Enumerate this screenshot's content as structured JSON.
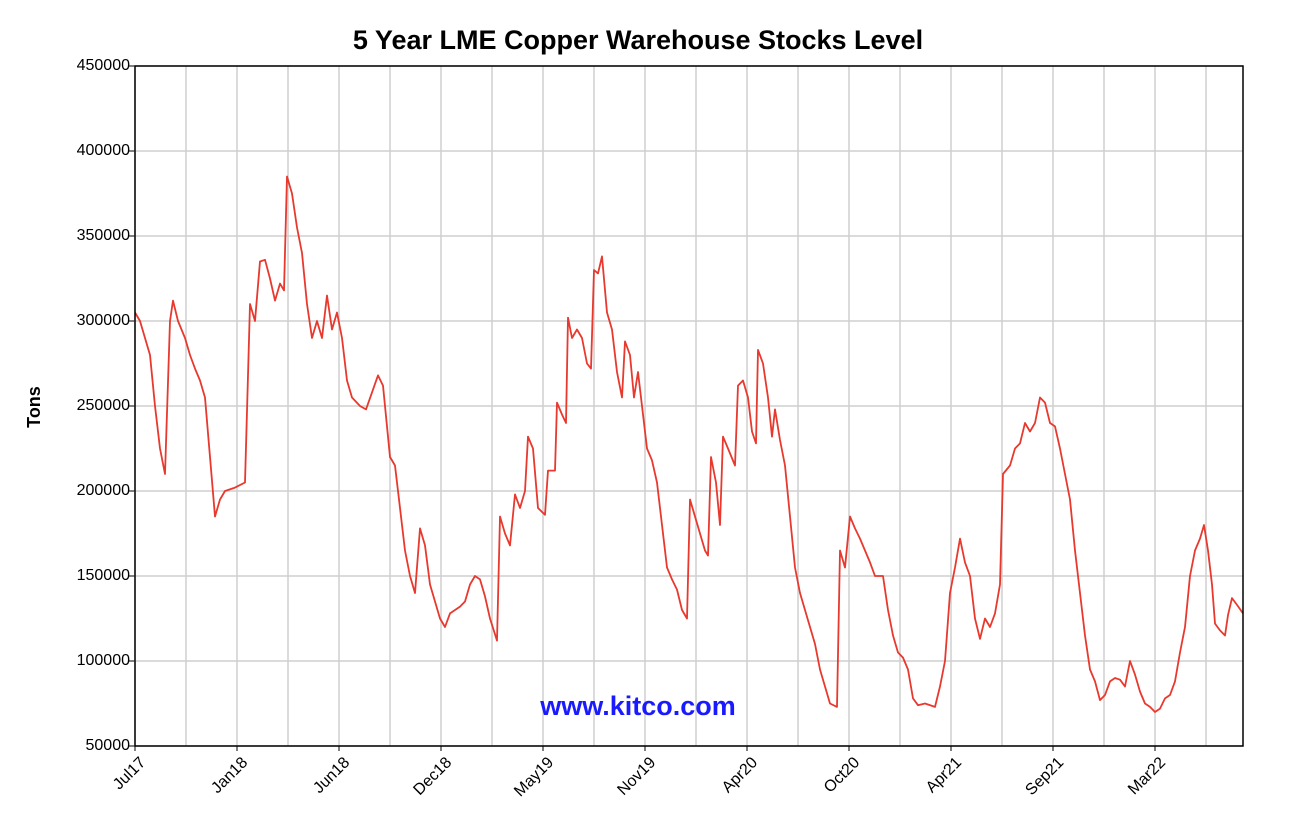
{
  "chart_data": {
    "type": "line",
    "title": "5 Year LME Copper Warehouse Stocks Level",
    "y_label": "Tons",
    "annotation": "www.kitco.com",
    "grid": true,
    "xlim": [
      0,
      1108
    ],
    "xticks": [
      {
        "value": 0,
        "label": "Jul17"
      },
      {
        "value": 102,
        "label": "Jan18"
      },
      {
        "value": 204,
        "label": "Jun18"
      },
      {
        "value": 306,
        "label": "Dec18"
      },
      {
        "value": 408,
        "label": "May19"
      },
      {
        "value": 510,
        "label": "Nov19"
      },
      {
        "value": 612,
        "label": "Apr20"
      },
      {
        "value": 714,
        "label": "Oct20"
      },
      {
        "value": 816,
        "label": "Apr21"
      },
      {
        "value": 918,
        "label": "Sep21"
      },
      {
        "value": 1020,
        "label": "Mar22"
      }
    ],
    "xminor": [
      51,
      153,
      255,
      357,
      459,
      561,
      663,
      765,
      867,
      969,
      1071
    ],
    "ylim": [
      50000,
      450000
    ],
    "yticks": [
      50000,
      100000,
      150000,
      200000,
      250000,
      300000,
      350000,
      400000,
      450000
    ],
    "series": [
      {
        "name": "Tons",
        "color": "#e8392e",
        "x": [
          0,
          5,
          15,
          20,
          25,
          30,
          35,
          38,
          43,
          50,
          55,
          60,
          65,
          70,
          75,
          80,
          85,
          90,
          100,
          110,
          115,
          120,
          125,
          130,
          135,
          140,
          145,
          149,
          152,
          157,
          162,
          167,
          172,
          177,
          182,
          187,
          192,
          197,
          202,
          207,
          212,
          217,
          225,
          231,
          237,
          243,
          248,
          255,
          260,
          265,
          270,
          275,
          280,
          285,
          290,
          295,
          300,
          305,
          310,
          315,
          325,
          330,
          335,
          340,
          345,
          350,
          355,
          362,
          365,
          370,
          375,
          380,
          385,
          390,
          393,
          398,
          403,
          410,
          413,
          420,
          422,
          427,
          431,
          433,
          437,
          442,
          447,
          452,
          456,
          459,
          463,
          467,
          472,
          477,
          482,
          487,
          490,
          495,
          499,
          503,
          507,
          512,
          517,
          522,
          527,
          532,
          537,
          542,
          547,
          552,
          555,
          560,
          565,
          570,
          573,
          576,
          581,
          585,
          588,
          593,
          600,
          603,
          608,
          613,
          617,
          621,
          623,
          628,
          633,
          637,
          640,
          645,
          650,
          655,
          660,
          665,
          670,
          675,
          680,
          685,
          690,
          695,
          702,
          705,
          710,
          715,
          720,
          725,
          730,
          735,
          740,
          748,
          753,
          758,
          763,
          768,
          773,
          778,
          783,
          790,
          800,
          805,
          810,
          815,
          820,
          825,
          830,
          835,
          840,
          845,
          850,
          855,
          860,
          865,
          868,
          875,
          880,
          885,
          890,
          895,
          900,
          905,
          910,
          915,
          920,
          925,
          930,
          935,
          940,
          945,
          950,
          955,
          960,
          965,
          970,
          975,
          980,
          985,
          990,
          995,
          1000,
          1005,
          1010,
          1015,
          1020,
          1025,
          1030,
          1035,
          1040,
          1045,
          1050,
          1055,
          1060,
          1065,
          1069,
          1073,
          1077,
          1080,
          1085,
          1090,
          1093,
          1097,
          1102,
          1108
        ],
        "values": [
          305000,
          300000,
          280000,
          250000,
          225000,
          210000,
          300000,
          312000,
          300000,
          290000,
          280000,
          272000,
          265000,
          255000,
          220000,
          185000,
          195000,
          200000,
          202000,
          205000,
          310000,
          300000,
          335000,
          336000,
          325000,
          312000,
          322000,
          318000,
          385000,
          375000,
          355000,
          340000,
          310000,
          290000,
          300000,
          290000,
          315000,
          295000,
          305000,
          290000,
          265000,
          255000,
          250000,
          248000,
          258000,
          268000,
          262000,
          220000,
          215000,
          190000,
          165000,
          150000,
          140000,
          178000,
          168000,
          145000,
          135000,
          125000,
          120000,
          128000,
          132000,
          135000,
          145000,
          150000,
          148000,
          138000,
          125000,
          112000,
          185000,
          175000,
          168000,
          198000,
          190000,
          200000,
          232000,
          225000,
          190000,
          186000,
          212000,
          212000,
          252000,
          245000,
          240000,
          302000,
          290000,
          295000,
          290000,
          275000,
          272000,
          330000,
          328000,
          338000,
          305000,
          295000,
          270000,
          255000,
          288000,
          280000,
          255000,
          270000,
          250000,
          225000,
          218000,
          205000,
          180000,
          155000,
          148000,
          142000,
          130000,
          125000,
          195000,
          185000,
          175000,
          165000,
          162000,
          220000,
          205000,
          180000,
          232000,
          225000,
          215000,
          262000,
          265000,
          255000,
          235000,
          228000,
          283000,
          275000,
          255000,
          232000,
          248000,
          230000,
          215000,
          185000,
          155000,
          140000,
          130000,
          120000,
          110000,
          95000,
          85000,
          75000,
          73000,
          165000,
          155000,
          185000,
          178000,
          172000,
          165000,
          158000,
          150000,
          150000,
          130000,
          115000,
          105000,
          102000,
          95000,
          78000,
          74000,
          75000,
          73000,
          85000,
          100000,
          140000,
          155000,
          172000,
          158000,
          150000,
          125000,
          113000,
          125000,
          120000,
          128000,
          145000,
          210000,
          215000,
          225000,
          228000,
          240000,
          235000,
          240000,
          255000,
          252000,
          240000,
          238000,
          225000,
          210000,
          195000,
          165000,
          140000,
          115000,
          95000,
          88000,
          77000,
          80000,
          88000,
          90000,
          89000,
          85000,
          100000,
          92000,
          82000,
          75000,
          73000,
          70000,
          72000,
          78000,
          80000,
          88000,
          105000,
          120000,
          150000,
          165000,
          172000,
          180000,
          165000,
          145000,
          122000,
          118000,
          115000,
          127000,
          137000,
          133000,
          128000
        ]
      }
    ]
  }
}
